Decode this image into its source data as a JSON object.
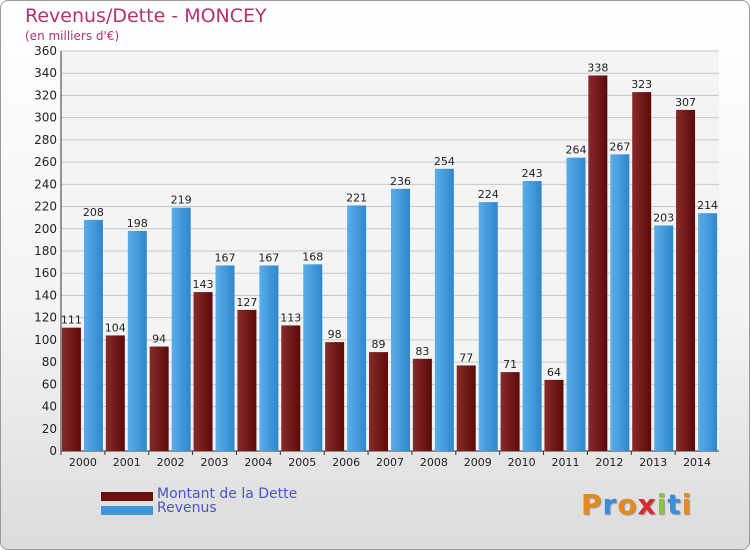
{
  "chart_data": {
    "type": "bar",
    "title": "Revenus/Dette - MONCEY",
    "subtitle": "(en milliers d'€)",
    "categories": [
      "2000",
      "2001",
      "2002",
      "2003",
      "2004",
      "2005",
      "2006",
      "2007",
      "2008",
      "2009",
      "2010",
      "2011",
      "2012",
      "2013",
      "2014"
    ],
    "series": [
      {
        "name": "Montant de la Dette",
        "color": "#6e1010",
        "values": [
          111,
          104,
          94,
          143,
          127,
          113,
          98,
          89,
          83,
          77,
          71,
          64,
          338,
          323,
          307
        ]
      },
      {
        "name": "Revenus",
        "color": "#3d97dd",
        "values": [
          208,
          198,
          219,
          167,
          167,
          168,
          221,
          236,
          254,
          224,
          243,
          264,
          267,
          203,
          214
        ]
      }
    ],
    "yticks": [
      "0",
      "20",
      "40",
      "60",
      "80",
      "100",
      "120",
      "140",
      "160",
      "180",
      "200",
      "220",
      "240",
      "260",
      "280",
      "300",
      "320",
      "340",
      "360"
    ],
    "ylim": [
      0,
      360
    ],
    "grid": true,
    "legend_position": "bottom-left"
  },
  "legend": {
    "items": [
      {
        "label": "Montant de la Dette",
        "color": "#6e1010"
      },
      {
        "label": "Revenus",
        "color": "#3d97dd"
      }
    ]
  },
  "logo": {
    "letters": [
      "P",
      "r",
      "o",
      "x",
      "i",
      "t",
      "i"
    ],
    "colors": [
      "#e8891c",
      "#3a8fd8",
      "#e8891c",
      "#d42b2b",
      "#8cc63f",
      "#3a8fd8",
      "#e8891c"
    ]
  }
}
